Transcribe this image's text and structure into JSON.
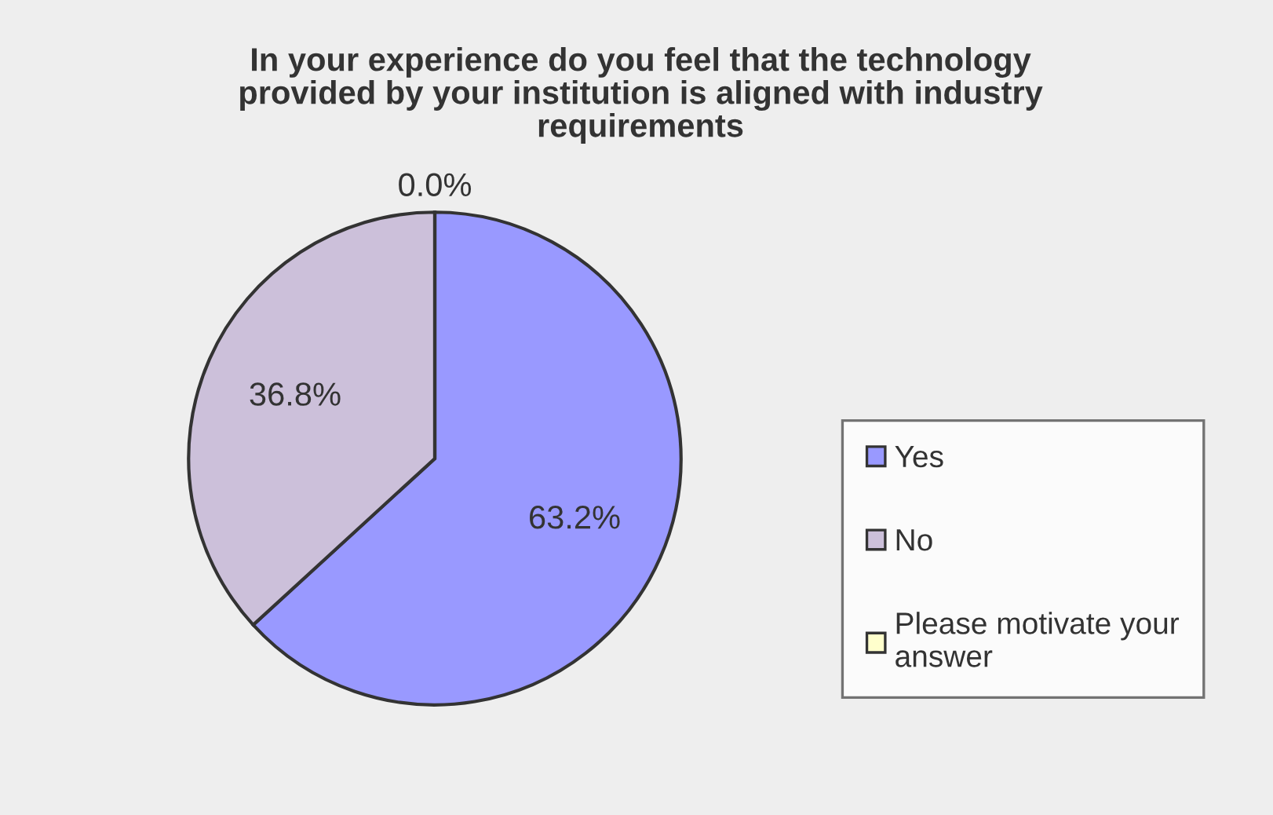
{
  "chart_data": {
    "type": "pie",
    "title": "In your experience do you feel that the technology\nprovided by your institution is aligned with industry\nrequirements",
    "categories": [
      "Yes",
      "No",
      "Please motivate your\nanswer"
    ],
    "values": [
      63.2,
      36.8,
      0.0
    ],
    "colors": [
      "#9999ff",
      "#ccc0da",
      "#ffffcc"
    ],
    "value_labels": [
      "63.2%",
      "36.8%",
      "0.0%"
    ],
    "legend": "right"
  }
}
